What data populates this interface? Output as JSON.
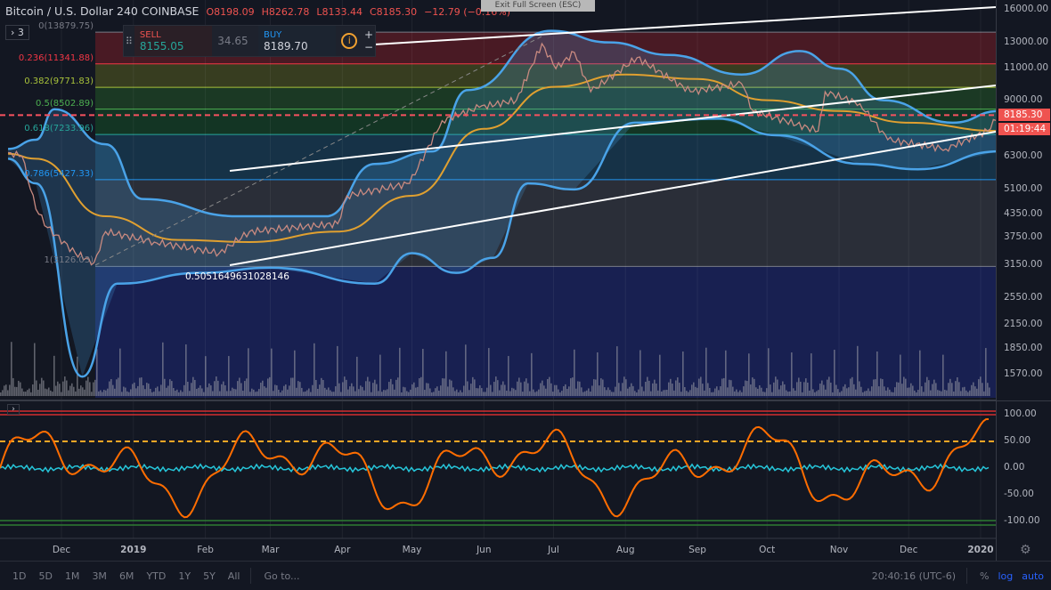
{
  "header": {
    "symbol": "Bitcoin / U.S. Dollar",
    "interval": "240",
    "exchange": "COINBASE",
    "open": "O8198.09",
    "high": "H8262.78",
    "low": "L8133.44",
    "close": "C8185.30",
    "change": "−12.79 (−0.16%)"
  },
  "legend_toggle": "3",
  "exit_fullscreen": "Exit Full Screen (ESC)",
  "trade": {
    "sell_label": "SELL",
    "sell_price": "8155.05",
    "spread": "34.65",
    "buy_label": "BUY",
    "buy_price": "8189.70",
    "info_icon": "info-icon"
  },
  "fib": [
    {
      "label": "0(13879.75)",
      "price": 13879.75,
      "color": "#787b86"
    },
    {
      "label": "0.236(11341.88)",
      "price": 11341.88,
      "color": "#f23645"
    },
    {
      "label": "0.382(9771.83)",
      "price": 9771.83,
      "color": "#a8c23a"
    },
    {
      "label": "0.5(8502.89)",
      "price": 8502.89,
      "color": "#4caf50"
    },
    {
      "label": "0.618(7233.96)",
      "price": 7233.96,
      "color": "#26a69a"
    },
    {
      "label": "0.786(5427.33)",
      "price": 5427.33,
      "color": "#2196f3"
    },
    {
      "label": "1(3126.03)",
      "price": 3126.03,
      "color": "#787b86"
    }
  ],
  "trendline_label": "0.5051649631028146",
  "price_axis": [
    "16000.00",
    "13000.00",
    "11000.00",
    "9000.00",
    "6300.00",
    "5100.00",
    "4350.00",
    "3750.00",
    "3150.00",
    "2550.00",
    "2150.00",
    "1850.00",
    "1570.00"
  ],
  "last_price": "8185.30",
  "countdown": "01:19:44",
  "osc_axis": [
    "100.00",
    "50.00",
    "0.00",
    "-50.00",
    "-100.00"
  ],
  "time_axis": [
    {
      "label": "Dec",
      "date": "2018-12-01"
    },
    {
      "label": "2019",
      "date": "2019-01-01"
    },
    {
      "label": "Feb",
      "date": "2019-02-01"
    },
    {
      "label": "Mar",
      "date": "2019-03-01"
    },
    {
      "label": "Apr",
      "date": "2019-04-01"
    },
    {
      "label": "May",
      "date": "2019-05-01"
    },
    {
      "label": "Jun",
      "date": "2019-06-01"
    },
    {
      "label": "Jul",
      "date": "2019-07-01"
    },
    {
      "label": "Aug",
      "date": "2019-08-01"
    },
    {
      "label": "Sep",
      "date": "2019-09-01"
    },
    {
      "label": "Oct",
      "date": "2019-10-01"
    },
    {
      "label": "Nov",
      "date": "2019-11-01"
    },
    {
      "label": "Dec",
      "date": "2019-12-01"
    },
    {
      "label": "2020",
      "date": "2020-01-01"
    }
  ],
  "ranges": [
    "1D",
    "5D",
    "1M",
    "3M",
    "6M",
    "YTD",
    "1Y",
    "5Y",
    "All"
  ],
  "goto": "Go to...",
  "clock": "20:40:16 (UTC-6)",
  "scale_buttons": {
    "percent": "%",
    "log": "log",
    "auto": "auto"
  },
  "colors": {
    "up": "#26a69a",
    "down": "#ef5350",
    "ma": "#e0a030",
    "bands": "#4aa3e8",
    "oscillator": "#ff6d00",
    "signal": "#26c6da"
  },
  "price_series": [
    [
      "2018-11-08",
      6450
    ],
    [
      "2018-11-14",
      6300
    ],
    [
      "2018-11-20",
      4500
    ],
    [
      "2018-11-25",
      4000
    ],
    [
      "2018-12-07",
      3400
    ],
    [
      "2018-12-15",
      3200
    ],
    [
      "2018-12-20",
      3900
    ],
    [
      "2019-01-10",
      3650
    ],
    [
      "2019-02-07",
      3400
    ],
    [
      "2019-02-20",
      3900
    ],
    [
      "2019-03-30",
      4100
    ],
    [
      "2019-04-03",
      4900
    ],
    [
      "2019-04-30",
      5300
    ],
    [
      "2019-05-14",
      7900
    ],
    [
      "2019-05-30",
      8600
    ],
    [
      "2019-06-15",
      9000
    ],
    [
      "2019-06-26",
      12900
    ],
    [
      "2019-07-02",
      11000
    ],
    [
      "2019-07-10",
      12200
    ],
    [
      "2019-07-17",
      9500
    ],
    [
      "2019-08-06",
      11800
    ],
    [
      "2019-08-29",
      9500
    ],
    [
      "2019-09-20",
      10000
    ],
    [
      "2019-09-25",
      8400
    ],
    [
      "2019-10-23",
      7400
    ],
    [
      "2019-10-26",
      9500
    ],
    [
      "2019-11-10",
      8800
    ],
    [
      "2019-11-22",
      7000
    ],
    [
      "2019-12-17",
      6600
    ],
    [
      "2020-01-04",
      7400
    ],
    [
      "2020-01-09",
      8185
    ]
  ],
  "ma_series": [
    [
      "2018-11-08",
      6400
    ],
    [
      "2018-11-20",
      6200
    ],
    [
      "2018-12-20",
      4300
    ],
    [
      "2019-01-20",
      3700
    ],
    [
      "2019-02-20",
      3650
    ],
    [
      "2019-03-30",
      3900
    ],
    [
      "2019-05-01",
      4900
    ],
    [
      "2019-06-01",
      7500
    ],
    [
      "2019-07-01",
      9800
    ],
    [
      "2019-08-01",
      10600
    ],
    [
      "2019-09-01",
      10300
    ],
    [
      "2019-10-01",
      9000
    ],
    [
      "2019-11-01",
      8400
    ],
    [
      "2019-12-01",
      7800
    ],
    [
      "2020-01-09",
      7400
    ]
  ],
  "bb_upper": [
    [
      "2018-11-08",
      6600
    ],
    [
      "2018-11-20",
      7000
    ],
    [
      "2018-11-28",
      8500
    ],
    [
      "2018-12-20",
      6800
    ],
    [
      "2019-01-05",
      4800
    ],
    [
      "2019-02-15",
      4300
    ],
    [
      "2019-03-25",
      4300
    ],
    [
      "2019-04-15",
      6000
    ],
    [
      "2019-05-10",
      6500
    ],
    [
      "2019-05-25",
      9600
    ],
    [
      "2019-06-30",
      14000
    ],
    [
      "2019-07-25",
      13000
    ],
    [
      "2019-08-20",
      12000
    ],
    [
      "2019-09-20",
      10600
    ],
    [
      "2019-10-15",
      12300
    ],
    [
      "2019-11-01",
      11000
    ],
    [
      "2019-11-20",
      9000
    ],
    [
      "2019-12-20",
      7800
    ],
    [
      "2020-01-09",
      8400
    ]
  ],
  "bb_lower": [
    [
      "2018-11-08",
      6200
    ],
    [
      "2018-11-20",
      5300
    ],
    [
      "2018-12-10",
      1550
    ],
    [
      "2018-12-25",
      2800
    ],
    [
      "2019-01-30",
      3000
    ],
    [
      "2019-03-01",
      3100
    ],
    [
      "2019-04-15",
      2800
    ],
    [
      "2019-05-01",
      3400
    ],
    [
      "2019-05-20",
      3000
    ],
    [
      "2019-06-05",
      3300
    ],
    [
      "2019-06-20",
      5300
    ],
    [
      "2019-07-10",
      5100
    ],
    [
      "2019-08-05",
      7800
    ],
    [
      "2019-09-10",
      8000
    ],
    [
      "2019-10-05",
      7200
    ],
    [
      "2019-11-10",
      6000
    ],
    [
      "2019-12-05",
      5800
    ],
    [
      "2020-01-09",
      6500
    ]
  ]
}
